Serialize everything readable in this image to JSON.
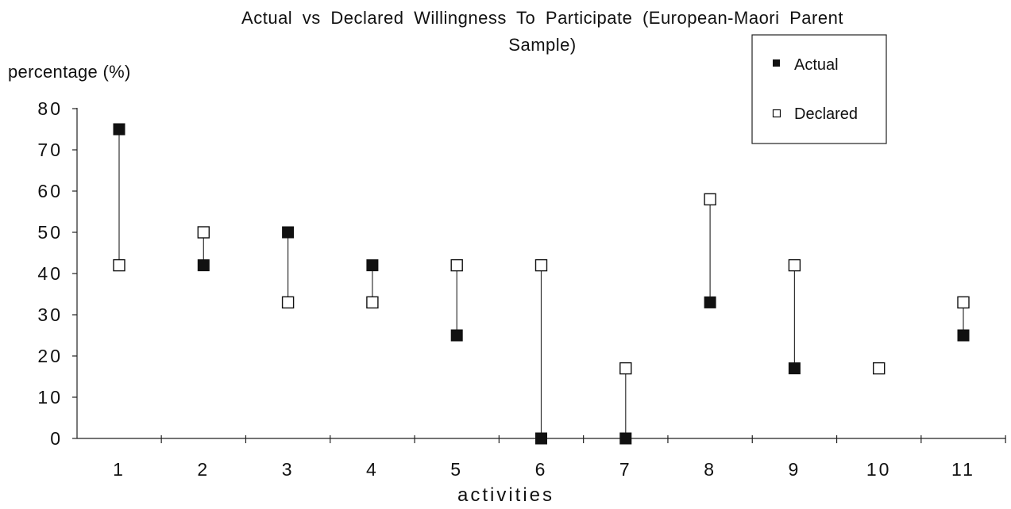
{
  "chart_data": {
    "type": "scatter",
    "title_line1": "Actual  vs  Declared  Willingness  To  Participate  (European-Maori  Parent",
    "title_line2": "Sample)",
    "xlabel": "activities",
    "ylabel": "percentage (%)",
    "categories": [
      "1",
      "2",
      "3",
      "4",
      "5",
      "6",
      "7",
      "8",
      "9",
      "10",
      "11"
    ],
    "ylim": [
      0,
      80
    ],
    "yticks": [
      "0",
      "10",
      "20",
      "30",
      "40",
      "50",
      "60",
      "70",
      "80"
    ],
    "series": [
      {
        "name": "Actual",
        "marker": "filled-square",
        "color": "#111111",
        "values": [
          75,
          42,
          50,
          42,
          25,
          0,
          0,
          33,
          17,
          null,
          25
        ]
      },
      {
        "name": "Declared",
        "marker": "hollow-square",
        "color": "#111111",
        "values": [
          42,
          50,
          33,
          33,
          42,
          42,
          17,
          58,
          42,
          17,
          33
        ]
      }
    ],
    "connectors": "vertical line between Actual and Declared for each activity",
    "legend_position": "top-right",
    "grid": false
  }
}
